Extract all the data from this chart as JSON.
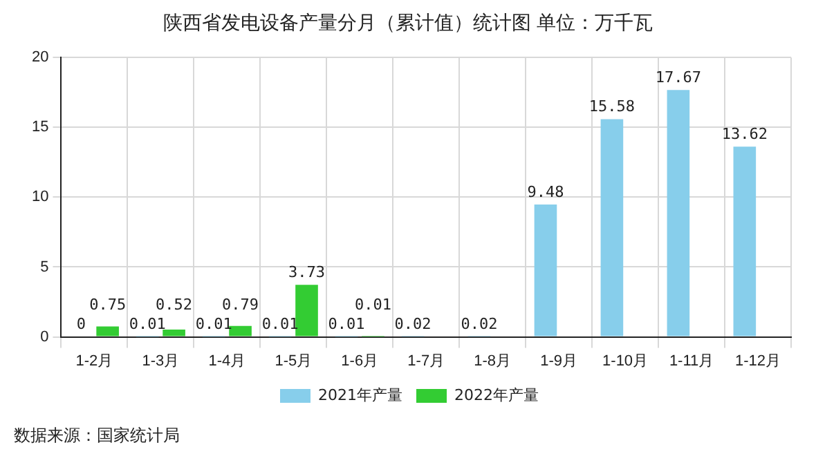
{
  "chart_data": {
    "type": "bar",
    "title": "陕西省发电设备产量分月（累计值）统计图 单位：万千瓦",
    "categories": [
      "1-2月",
      "1-3月",
      "1-4月",
      "1-5月",
      "1-6月",
      "1-7月",
      "1-8月",
      "1-9月",
      "1-10月",
      "1-11月",
      "1-12月"
    ],
    "series": [
      {
        "name": "2021年产量",
        "color": "#87ceeb",
        "values": [
          0,
          0.01,
          0.01,
          0.01,
          0.01,
          0.02,
          0.02,
          9.48,
          15.58,
          17.67,
          13.62
        ]
      },
      {
        "name": "2022年产量",
        "color": "#33cc33",
        "values": [
          0.75,
          0.52,
          0.79,
          3.73,
          0.01,
          null,
          null,
          null,
          null,
          null,
          null
        ]
      }
    ],
    "ylim": [
      0,
      20
    ],
    "yticks": [
      0,
      5,
      10,
      15,
      20
    ],
    "grid": true,
    "legend": "bottom",
    "data_labels": true,
    "annotations": [
      "数据来源：国家统计局"
    ]
  }
}
